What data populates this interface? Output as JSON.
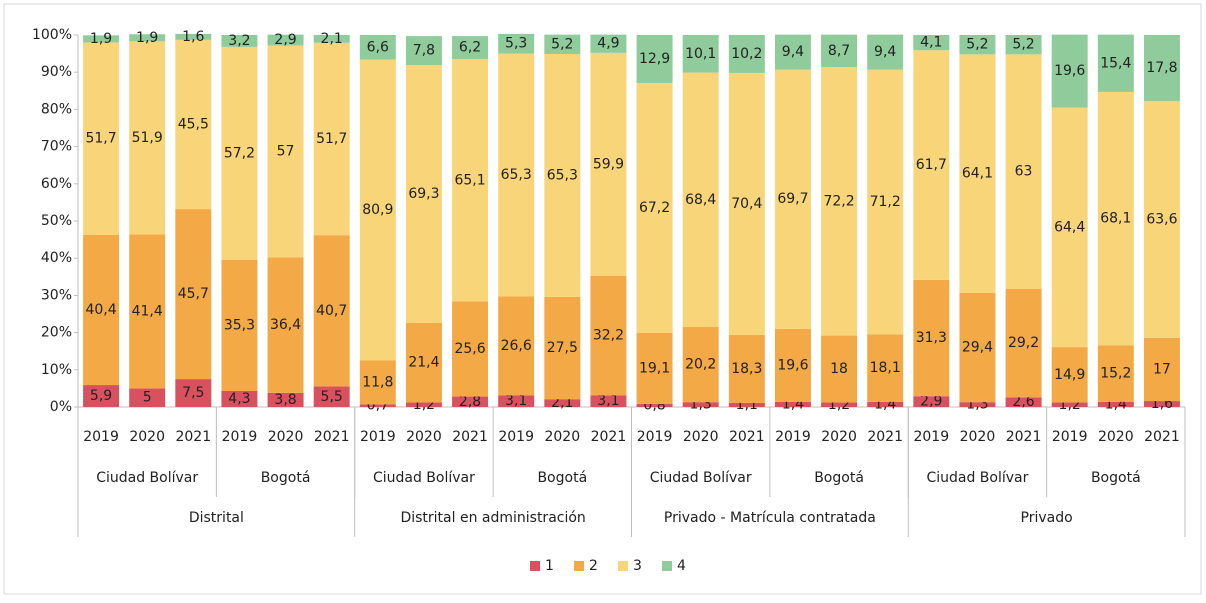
{
  "chart_data": {
    "type": "stacked_bar_100",
    "categories": [
      "2019",
      "2020",
      "2021",
      "2019",
      "2020",
      "2021",
      "2019",
      "2020",
      "2021",
      "2019",
      "2020",
      "2021",
      "2019",
      "2020",
      "2021",
      "2019",
      "2020",
      "2021",
      "2019",
      "2020",
      "2021",
      "2019",
      "2020",
      "2021"
    ],
    "city_groups": [
      "Ciudad Bolívar",
      "Bogotá",
      "Ciudad Bolívar",
      "Bogotá",
      "Ciudad Bolívar",
      "Bogotá",
      "Ciudad Bolívar",
      "Bogotá"
    ],
    "sector_groups": [
      "Distrital",
      "Distrital en administración",
      "Privado - Matrícula contratada",
      "Privado"
    ],
    "series": [
      {
        "name": "1",
        "color": "#d9515e",
        "values": [
          5.9,
          5,
          7.5,
          4.3,
          3.8,
          5.5,
          0.7,
          1.2,
          2.8,
          3.1,
          2.1,
          3.1,
          0.8,
          1.3,
          1.1,
          1.4,
          1.2,
          1.4,
          2.9,
          1.3,
          2.6,
          1.2,
          1.4,
          1.6
        ],
        "value_labels": [
          "5,9",
          "5",
          "7,5",
          "4,3",
          "3,8",
          "5,5",
          "0,7",
          "1,2",
          "2,8",
          "3,1",
          "2,1",
          "3,1",
          "0,8",
          "1,3",
          "1,1",
          "1,4",
          "1,2",
          "1,4",
          "2,9",
          "1,3",
          "2,6",
          "1,2",
          "1,4",
          "1,6"
        ]
      },
      {
        "name": "2",
        "color": "#f4a947",
        "values": [
          40.4,
          41.4,
          45.7,
          35.3,
          36.4,
          40.7,
          11.8,
          21.4,
          25.6,
          26.6,
          27.5,
          32.2,
          19.1,
          20.2,
          18.3,
          19.6,
          18,
          18.1,
          31.3,
          29.4,
          29.2,
          14.9,
          15.2,
          17
        ],
        "value_labels": [
          "40,4",
          "41,4",
          "45,7",
          "35,3",
          "36,4",
          "40,7",
          "11,8",
          "21,4",
          "25,6",
          "26,6",
          "27,5",
          "32,2",
          "19,1",
          "20,2",
          "18,3",
          "19,6",
          "18",
          "18,1",
          "31,3",
          "29,4",
          "29,2",
          "14,9",
          "15,2",
          "17"
        ]
      },
      {
        "name": "3",
        "color": "#f9d57a",
        "values": [
          51.7,
          51.9,
          45.5,
          57.2,
          57,
          51.7,
          80.9,
          69.3,
          65.1,
          65.3,
          65.3,
          59.9,
          67.2,
          68.4,
          70.4,
          69.7,
          72.2,
          71.2,
          61.7,
          64.1,
          63,
          64.4,
          68.1,
          63.6
        ],
        "value_labels": [
          "51,7",
          "51,9",
          "45,5",
          "57,2",
          "57",
          "51,7",
          "80,9",
          "69,3",
          "65,1",
          "65,3",
          "65,3",
          "59,9",
          "67,2",
          "68,4",
          "70,4",
          "69,7",
          "72,2",
          "71,2",
          "61,7",
          "64,1",
          "63",
          "64,4",
          "68,1",
          "63,6"
        ]
      },
      {
        "name": "4",
        "color": "#8fcb9b",
        "values": [
          1.9,
          1.9,
          1.6,
          3.2,
          2.9,
          2.1,
          6.6,
          7.8,
          6.2,
          5.3,
          5.2,
          4.9,
          12.9,
          10.1,
          10.2,
          9.4,
          8.7,
          9.4,
          4.1,
          5.2,
          5.2,
          19.6,
          15.4,
          17.8
        ],
        "value_labels": [
          "1,9",
          "1,9",
          "1,6",
          "3,2",
          "2,9",
          "2,1",
          "6,6",
          "7,8",
          "6,2",
          "5,3",
          "5,2",
          "4,9",
          "12,9",
          "10,1",
          "10,2",
          "9,4",
          "8,7",
          "9,4",
          "4,1",
          "5,2",
          "5,2",
          "19,6",
          "15,4",
          "17,8"
        ]
      }
    ],
    "ylim": [
      0,
      100
    ],
    "yticks": [
      {
        "value": 0,
        "label": "0%"
      },
      {
        "value": 10,
        "label": "10%"
      },
      {
        "value": 20,
        "label": "20%"
      },
      {
        "value": 30,
        "label": "30%"
      },
      {
        "value": 40,
        "label": "40%"
      },
      {
        "value": 50,
        "label": "50%"
      },
      {
        "value": 60,
        "label": "60%"
      },
      {
        "value": 70,
        "label": "70%"
      },
      {
        "value": 80,
        "label": "80%"
      },
      {
        "value": 90,
        "label": "90%"
      },
      {
        "value": 100,
        "label": "100%"
      }
    ],
    "legend": "bottom"
  }
}
